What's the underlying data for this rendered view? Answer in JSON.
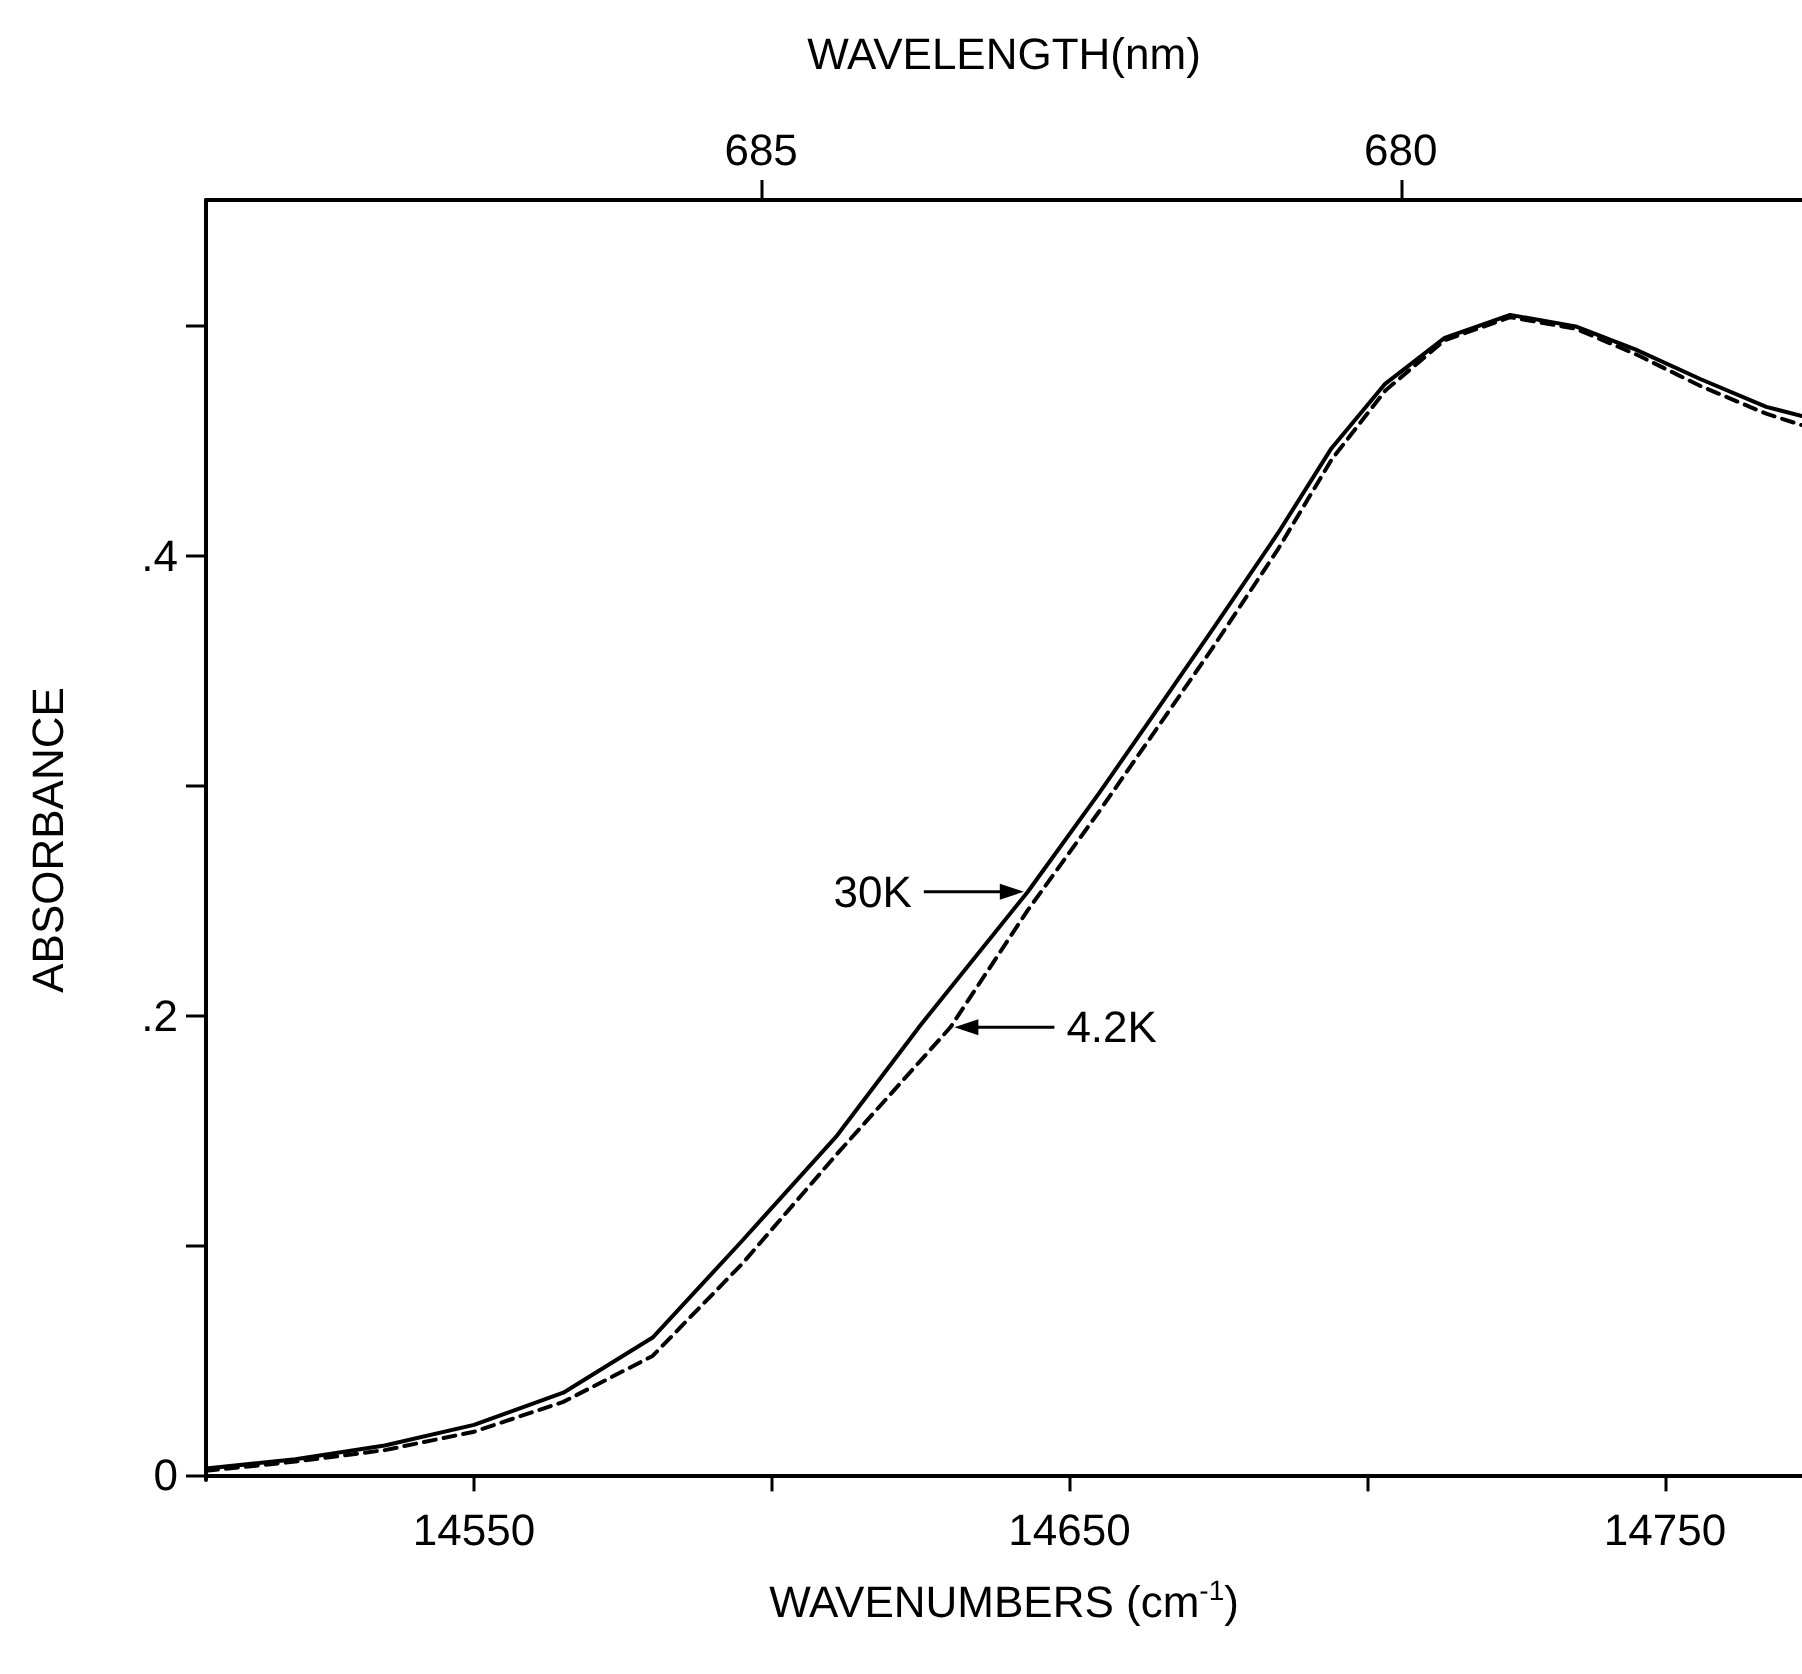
{
  "chart_data": {
    "type": "line",
    "xlabel": "WAVENUMBERS (cm$^{-1}$)",
    "ylabel": "ABSORBANCE",
    "x2label": "WAVELENGTH(nm)",
    "xlim": [
      14505,
      14773
    ],
    "xticks": [
      14550,
      {
        "value": 14600,
        "label": null
      },
      14650,
      {
        "value": 14700,
        "label": null
      },
      14750
    ],
    "x2lim": [
      689.4,
      676.9
    ],
    "x2ticks": [
      685,
      680
    ],
    "ylim": [
      -0.002,
      0.555
    ],
    "yticks": [
      0,
      {
        "value": 0.1,
        "label": null
      },
      {
        "value": 0.2,
        "label": ".2"
      },
      {
        "value": 0.3,
        "label": null
      },
      {
        "value": 0.4,
        "label": ".4"
      },
      {
        "value": 0.5,
        "label": null
      }
    ],
    "grid": false,
    "marker": "none",
    "series": [
      {
        "color": "#000000",
        "line_style": "solid",
        "x": [
          14505,
          14520,
          14535,
          14550,
          14565,
          14580,
          14595,
          14611,
          14625,
          14643,
          14655,
          14666,
          14674,
          14685,
          14694,
          14703,
          14713,
          14724,
          14735,
          14745,
          14756,
          14767,
          14773
        ],
        "values": [
          0.003,
          0.007,
          0.013,
          0.022,
          0.036,
          0.06,
          0.102,
          0.148,
          0.196,
          0.254,
          0.297,
          0.338,
          0.368,
          0.41,
          0.447,
          0.475,
          0.495,
          0.505,
          0.5,
          0.49,
          0.477,
          0.465,
          0.461
        ]
      },
      {
        "color": "#000000",
        "line_style": "dashed",
        "x": [
          14505,
          14520,
          14535,
          14550,
          14565,
          14580,
          14595,
          14611,
          14630,
          14643,
          14655,
          14666,
          14674,
          14685,
          14694,
          14703,
          14713,
          14724,
          14735,
          14745,
          14756,
          14767,
          14773
        ],
        "values": [
          0.002,
          0.006,
          0.011,
          0.019,
          0.032,
          0.052,
          0.092,
          0.14,
          0.195,
          0.246,
          0.289,
          0.33,
          0.36,
          0.403,
          0.442,
          0.472,
          0.494,
          0.504,
          0.499,
          0.488,
          0.474,
          0.462,
          0.457
        ]
      }
    ],
    "annotations": [
      {
        "text": "30K",
        "x": 14643,
        "y": 0.254
      },
      {
        "text": "4.2K",
        "x": 14630,
        "y": 0.195
      }
    ]
  }
}
